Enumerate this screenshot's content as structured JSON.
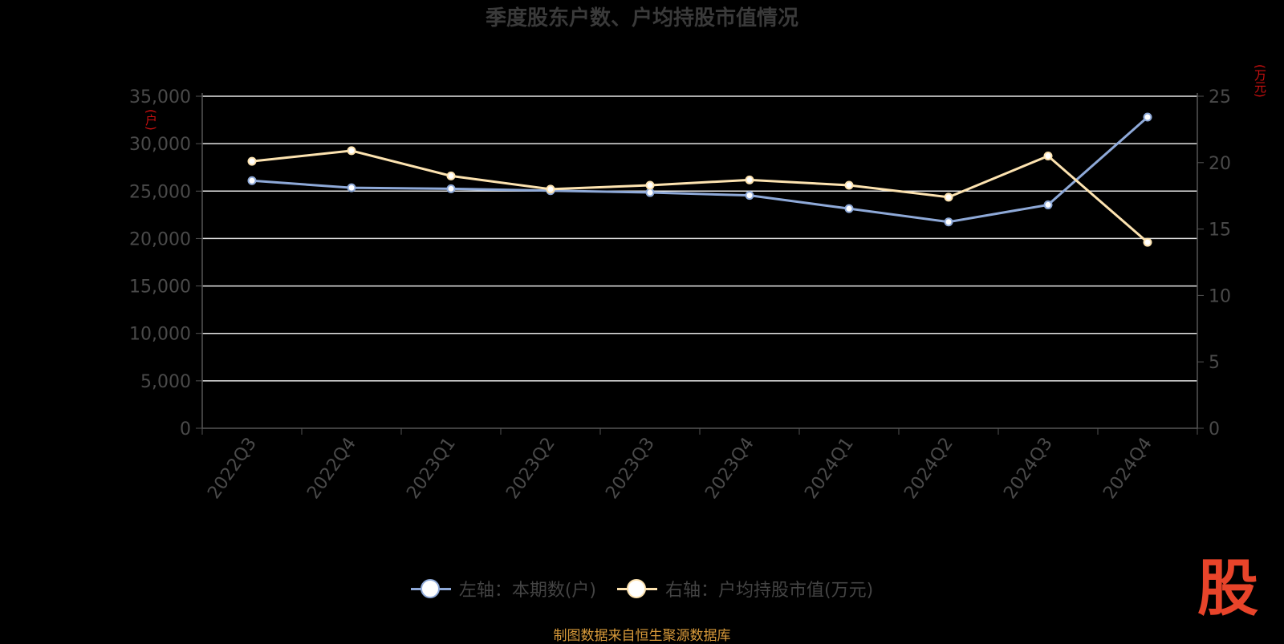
{
  "title": "季度股东户数、户均持股市值情况",
  "left_unit": "(户)",
  "right_unit": "(万元)",
  "source": "制图数据来自恒生聚源数据库",
  "logo_text": "股",
  "legend": [
    {
      "label": "左轴：本期数(户)",
      "color": "#8ea9d8"
    },
    {
      "label": "右轴：户均持股市值(万元)",
      "color": "#fde3b0"
    }
  ],
  "chart_data": {
    "type": "line",
    "categories": [
      "2022Q3",
      "2022Q4",
      "2023Q1",
      "2023Q2",
      "2023Q3",
      "2023Q4",
      "2024Q1",
      "2024Q2",
      "2024Q3",
      "2024Q4"
    ],
    "series": [
      {
        "name": "左轴：本期数(户)",
        "axis": "left",
        "color": "#8ea9d8",
        "values": [
          26100,
          25350,
          25250,
          25050,
          24850,
          24550,
          23150,
          21750,
          23550,
          32800
        ]
      },
      {
        "name": "右轴：户均持股市值(万元)",
        "axis": "right",
        "color": "#fde3b0",
        "values": [
          20.1,
          20.9,
          19.0,
          18.0,
          18.3,
          18.7,
          18.3,
          17.4,
          20.5,
          14.0
        ]
      }
    ],
    "y_left": {
      "min": 0,
      "max": 35000,
      "ticks": [
        "0",
        "5,000",
        "10,000",
        "15,000",
        "20,000",
        "25,000",
        "30,000",
        "35,000"
      ]
    },
    "y_right": {
      "min": 0,
      "max": 25,
      "ticks": [
        "0",
        "5",
        "10",
        "15",
        "20",
        "25"
      ]
    },
    "grid": true,
    "legend_position": "bottom"
  },
  "colors": {
    "background": "#000000",
    "grid": "#e6e6e6",
    "axis_text": "#4a4a4a",
    "unit_text": "#cc1010",
    "logo": "#e8442a",
    "source_text": "#d89a3a"
  }
}
